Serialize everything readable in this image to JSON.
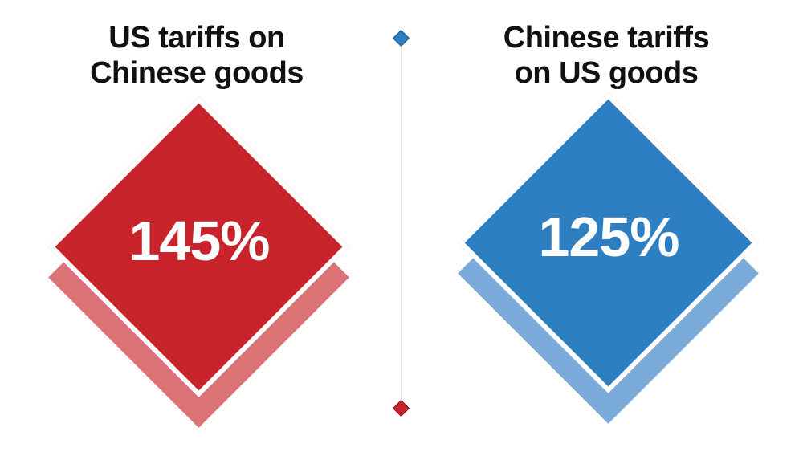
{
  "chart_data": {
    "type": "bar",
    "categories": [
      "US tariffs on Chinese goods",
      "Chinese tariffs on US goods"
    ],
    "values": [
      145,
      125
    ],
    "value_labels": [
      "145%",
      "125%"
    ],
    "title": "",
    "xlabel": "",
    "ylabel": "",
    "unit": "%",
    "colors": [
      "#c8232b",
      "#2e7fc2"
    ],
    "legend_position": "none",
    "grid": false
  },
  "left": {
    "title": "US tariffs on\nChinese goods",
    "value": "145%",
    "color": "#c8232b",
    "shadow_color": "#db7377"
  },
  "right": {
    "title": "Chinese tariffs\non US goods",
    "value": "125%",
    "color": "#2e7fc2",
    "shadow_color": "#7aabda"
  },
  "divider": {
    "line_color": "#e2e2e2",
    "top_marker_color": "#2e7fc2",
    "bottom_marker_color": "#c8232b"
  }
}
